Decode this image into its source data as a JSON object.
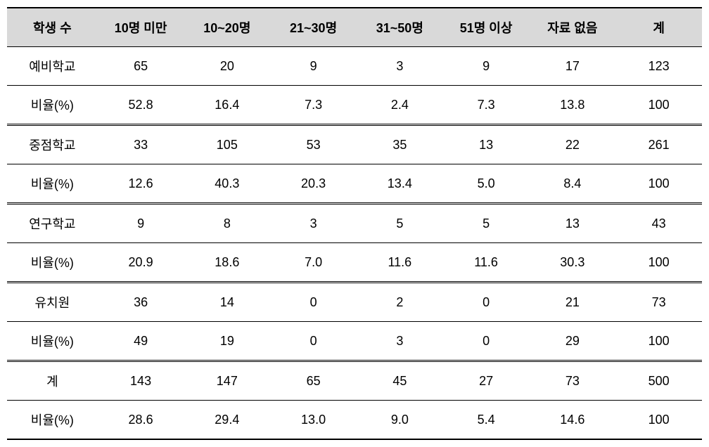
{
  "table": {
    "type": "table",
    "background_color": "#ffffff",
    "header_bg": "#d9d9d9",
    "text_color": "#000000",
    "border_color": "#000000",
    "font_size": 18,
    "columns": [
      "학생 수",
      "10명 미만",
      "10~20명",
      "21~30명",
      "31~50명",
      "51명 이상",
      "자료 없음",
      "계"
    ],
    "groups": [
      {
        "label": "예비학교",
        "counts": [
          "65",
          "20",
          "9",
          "3",
          "9",
          "17",
          "123"
        ],
        "pct_label": "비율(%)",
        "pcts": [
          "52.8",
          "16.4",
          "7.3",
          "2.4",
          "7.3",
          "13.8",
          "100"
        ]
      },
      {
        "label": "중점학교",
        "counts": [
          "33",
          "105",
          "53",
          "35",
          "13",
          "22",
          "261"
        ],
        "pct_label": "비율(%)",
        "pcts": [
          "12.6",
          "40.3",
          "20.3",
          "13.4",
          "5.0",
          "8.4",
          "100"
        ]
      },
      {
        "label": "연구학교",
        "counts": [
          "9",
          "8",
          "3",
          "5",
          "5",
          "13",
          "43"
        ],
        "pct_label": "비율(%)",
        "pcts": [
          "20.9",
          "18.6",
          "7.0",
          "11.6",
          "11.6",
          "30.3",
          "100"
        ]
      },
      {
        "label": "유치원",
        "counts": [
          "36",
          "14",
          "0",
          "2",
          "0",
          "21",
          "73"
        ],
        "pct_label": "비율(%)",
        "pcts": [
          "49",
          "19",
          "0",
          "3",
          "0",
          "29",
          "100"
        ]
      },
      {
        "label": "계",
        "counts": [
          "143",
          "147",
          "65",
          "45",
          "27",
          "73",
          "500"
        ],
        "pct_label": "비율(%)",
        "pcts": [
          "28.6",
          "29.4",
          "13.0",
          "9.0",
          "5.4",
          "14.6",
          "100"
        ]
      }
    ]
  }
}
